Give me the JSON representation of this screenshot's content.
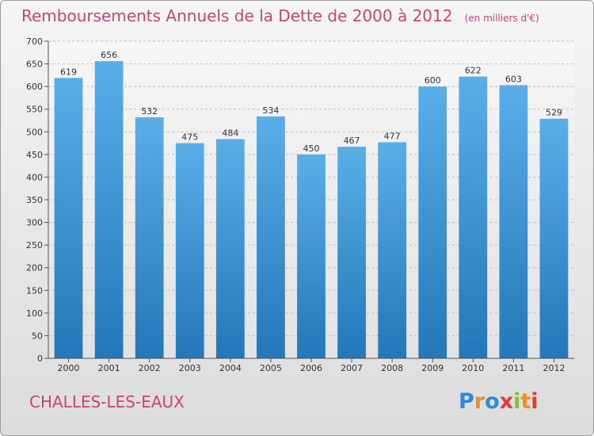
{
  "title": "Remboursements Annuels de la Dette de 2000 à 2012",
  "unit": "(en milliers d'€)",
  "town": "CHALLES-LES-EAUX",
  "logo": {
    "letters": [
      "P",
      "r",
      "o",
      "x",
      "i",
      "t",
      "i"
    ],
    "colors": [
      "#2e8ad8",
      "#f28c28",
      "#2e8ad8",
      "#e23a3a",
      "#7cc242",
      "#f28c28",
      "#e23a3a"
    ]
  },
  "colors": {
    "title": "#c8437a",
    "bar_top": "#5aaee8",
    "bar_bottom": "#2477b8",
    "grid": "#c0c0c0",
    "axis": "#555555"
  },
  "chart_data": {
    "type": "bar",
    "categories": [
      "2000",
      "2001",
      "2002",
      "2003",
      "2004",
      "2005",
      "2006",
      "2007",
      "2008",
      "2009",
      "2010",
      "2011",
      "2012"
    ],
    "values": [
      619,
      656,
      532,
      475,
      484,
      534,
      450,
      467,
      477,
      600,
      622,
      603,
      529
    ],
    "y_ticks": [
      0,
      50,
      100,
      150,
      200,
      250,
      300,
      350,
      400,
      450,
      500,
      550,
      600,
      650,
      700
    ],
    "ylim": [
      0,
      700
    ],
    "grid": true,
    "data_labels": true
  }
}
